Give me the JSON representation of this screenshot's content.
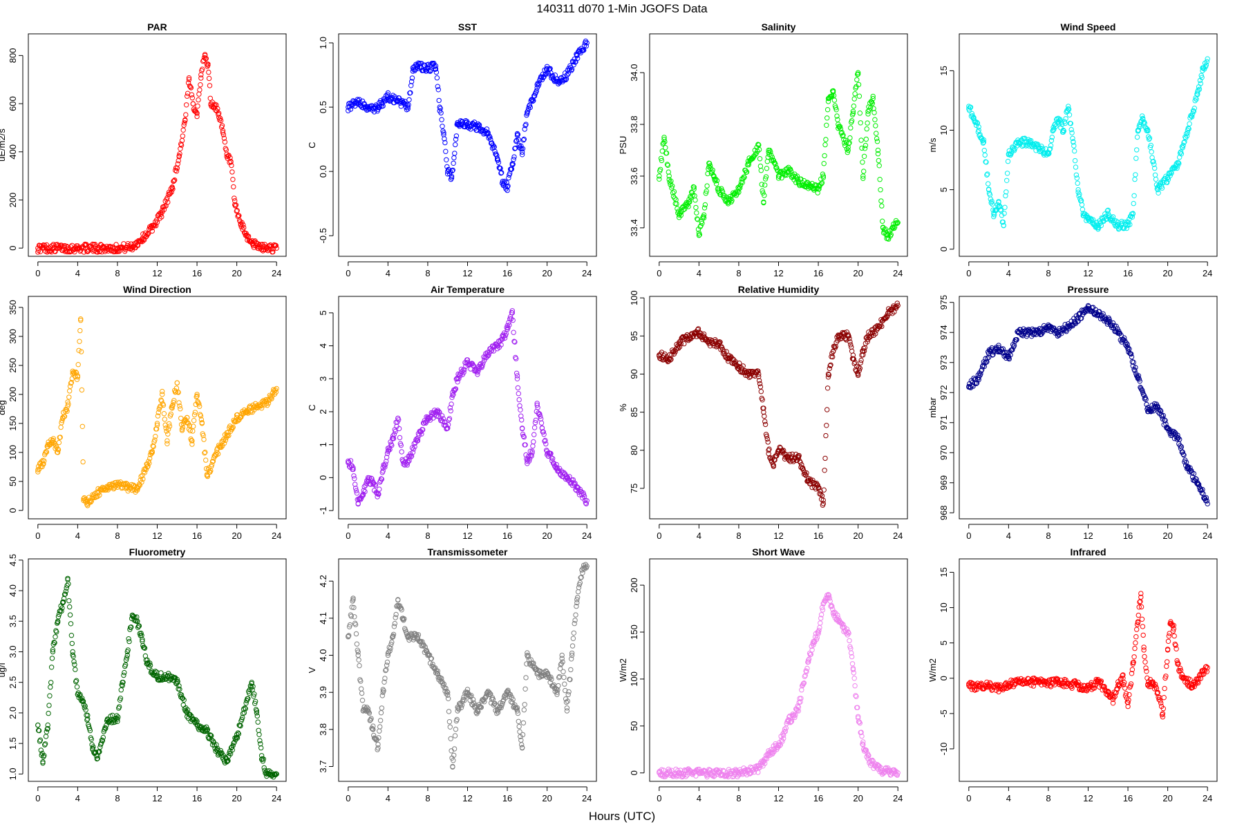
{
  "figure": {
    "title": "140311   d070   1-Min  JGOFS Data",
    "xlabel": "Hours (UTC)"
  },
  "chart_data": [
    {
      "type": "scatter",
      "title": "PAR",
      "ylabel": "uE/m2/s",
      "color": "#ff0000",
      "xlim": [
        -0.96,
        24.96
      ],
      "ylim": [
        -34,
        890
      ],
      "xticks": [
        0,
        4,
        8,
        12,
        16,
        20,
        24
      ],
      "yticks": [
        0,
        200,
        400,
        600,
        800
      ],
      "x": [
        0,
        2,
        4,
        6,
        8,
        9.5,
        10.5,
        11.5,
        12.5,
        13.5,
        14.2,
        14.8,
        15.2,
        15.6,
        16.0,
        16.4,
        16.8,
        17.1,
        17.4,
        17.8,
        18.2,
        18.6,
        19.0,
        19.4,
        19.8,
        20.4,
        21.0,
        21.6,
        22.2,
        23.0,
        24.0
      ],
      "y": [
        0,
        0,
        0,
        0,
        0,
        5,
        40,
        85,
        150,
        250,
        380,
        530,
        700,
        600,
        560,
        720,
        800,
        760,
        600,
        590,
        560,
        480,
        380,
        360,
        180,
        100,
        50,
        20,
        5,
        0,
        0
      ]
    },
    {
      "type": "scatter",
      "title": "SST",
      "ylabel": "C",
      "color": "#0000ff",
      "xlim": [
        -0.96,
        24.96
      ],
      "ylim": [
        -0.66,
        1.07
      ],
      "xticks": [
        0,
        4,
        8,
        12,
        16,
        20,
        24
      ],
      "yticks": [
        -0.5,
        0.0,
        0.5,
        1.0
      ],
      "x": [
        0,
        1,
        2,
        3,
        4,
        5,
        6,
        6.5,
        7,
        8,
        8.8,
        9.2,
        9.6,
        10.0,
        10.4,
        11,
        12,
        13,
        14,
        15,
        15.6,
        16.0,
        16.5,
        17.0,
        17.5,
        18,
        19,
        20,
        21,
        22,
        23,
        24
      ],
      "y": [
        0.5,
        0.55,
        0.48,
        0.5,
        0.58,
        0.55,
        0.5,
        0.78,
        0.82,
        0.8,
        0.82,
        0.5,
        0.3,
        0.0,
        -0.05,
        0.38,
        0.36,
        0.35,
        0.3,
        0.1,
        -0.1,
        -0.12,
        0.05,
        0.28,
        0.15,
        0.45,
        0.65,
        0.8,
        0.7,
        0.75,
        0.9,
        1.0
      ]
    },
    {
      "type": "scatter",
      "title": "Salinity",
      "ylabel": "PSU",
      "color": "#00ee00",
      "xlim": [
        -0.96,
        24.96
      ],
      "ylim": [
        33.29,
        34.15
      ],
      "xticks": [
        0,
        4,
        8,
        12,
        16,
        20,
        24
      ],
      "yticks": [
        33.4,
        33.6,
        33.8,
        34.0
      ],
      "x": [
        0,
        0.5,
        1,
        2,
        3,
        3.5,
        4,
        4.5,
        5,
        5.5,
        6,
        7,
        8,
        9,
        10,
        10.5,
        11,
        12,
        13,
        14,
        15,
        16,
        16.5,
        17,
        17.5,
        18,
        19,
        19.5,
        20,
        20.5,
        21,
        21.5,
        22,
        22.5,
        23,
        23.5,
        24
      ],
      "y": [
        33.6,
        33.75,
        33.6,
        33.45,
        33.5,
        33.55,
        33.38,
        33.45,
        33.65,
        33.6,
        33.55,
        33.5,
        33.55,
        33.65,
        33.72,
        33.5,
        33.7,
        33.6,
        33.62,
        33.58,
        33.56,
        33.55,
        33.6,
        33.9,
        33.93,
        33.8,
        33.7,
        33.85,
        34.0,
        33.6,
        33.85,
        33.9,
        33.7,
        33.4,
        33.36,
        33.4,
        33.42
      ]
    },
    {
      "type": "scatter",
      "title": "Wind Speed",
      "ylabel": "m/s",
      "color": "#00eeee",
      "xlim": [
        -0.96,
        24.96
      ],
      "ylim": [
        -0.6,
        18.1
      ],
      "xticks": [
        0,
        4,
        8,
        12,
        16,
        20,
        24
      ],
      "yticks": [
        0,
        5,
        10,
        15
      ],
      "x": [
        0,
        0.5,
        1,
        1.5,
        2,
        2.5,
        3,
        3.5,
        4,
        5,
        6,
        7,
        8,
        8.5,
        9,
        9.5,
        10,
        10.5,
        11,
        11.5,
        12,
        13,
        14,
        15,
        16,
        16.5,
        17,
        17.5,
        18,
        19,
        20,
        21,
        22,
        23,
        23.5,
        24
      ],
      "y": [
        12,
        11,
        10,
        9,
        5,
        3,
        4,
        2,
        8,
        9,
        9,
        8.5,
        8,
        10,
        11,
        10,
        12,
        9,
        5,
        3,
        2.5,
        2,
        3,
        2,
        2,
        3,
        10,
        11,
        10,
        5,
        6,
        7,
        10,
        13,
        15,
        16
      ]
    },
    {
      "type": "scatter",
      "title": "Wind Direction",
      "ylabel": "deg",
      "color": "#ffa500",
      "xlim": [
        -0.96,
        24.96
      ],
      "ylim": [
        -14.5,
        369
      ],
      "xticks": [
        0,
        4,
        8,
        12,
        16,
        20,
        24
      ],
      "yticks": [
        0,
        50,
        100,
        150,
        200,
        250,
        300,
        350
      ],
      "x": [
        0,
        0.5,
        1,
        1.5,
        2,
        2.5,
        3,
        3.5,
        4,
        4.3,
        4.6,
        5,
        6,
        7,
        8,
        9,
        10,
        11,
        11.5,
        12,
        12.5,
        13,
        13.5,
        14,
        14.5,
        15,
        15.5,
        16,
        16.5,
        17,
        18,
        19,
        20,
        21,
        22,
        23,
        24
      ],
      "y": [
        70,
        80,
        110,
        120,
        100,
        160,
        180,
        240,
        230,
        330,
        20,
        15,
        30,
        40,
        45,
        40,
        35,
        80,
        100,
        150,
        200,
        120,
        180,
        220,
        140,
        160,
        120,
        200,
        150,
        60,
        100,
        130,
        160,
        170,
        180,
        185,
        210
      ]
    },
    {
      "type": "scatter",
      "title": "Air Temperature",
      "ylabel": "C",
      "color": "#a020f0",
      "xlim": [
        -0.96,
        24.96
      ],
      "ylim": [
        -1.25,
        5.5
      ],
      "xticks": [
        0,
        4,
        8,
        12,
        16,
        20,
        24
      ],
      "yticks": [
        -1,
        0,
        1,
        2,
        3,
        4,
        5
      ],
      "x": [
        0,
        0.5,
        1,
        1.5,
        2,
        2.5,
        3,
        3.5,
        4,
        4.5,
        5,
        5.5,
        6,
        7,
        8,
        9,
        10,
        10.5,
        11,
        12,
        13,
        14,
        15,
        15.5,
        16,
        16.5,
        17,
        17.5,
        18,
        18.5,
        19,
        19.5,
        20,
        21,
        22,
        23,
        24
      ],
      "y": [
        0.5,
        0.3,
        -0.8,
        -0.5,
        0,
        -0.2,
        -0.5,
        0.2,
        0.8,
        1.2,
        1.8,
        0.5,
        0.5,
        1.2,
        1.8,
        2.0,
        1.5,
        2.5,
        3.0,
        3.5,
        3.2,
        3.8,
        4.0,
        4.2,
        4.5,
        5.0,
        3.0,
        1.5,
        0.5,
        0.8,
        2.2,
        1.5,
        0.8,
        0.3,
        0,
        -0.3,
        -0.7
      ]
    },
    {
      "type": "scatter",
      "title": "Relative Humidity",
      "ylabel": "%",
      "color": "#8b0000",
      "xlim": [
        -0.96,
        24.96
      ],
      "ylim": [
        71,
        100.2
      ],
      "xticks": [
        0,
        4,
        8,
        12,
        16,
        20,
        24
      ],
      "yticks": [
        75,
        80,
        85,
        90,
        95,
        100
      ],
      "x": [
        0,
        1,
        2,
        3,
        4,
        5,
        6,
        7,
        8,
        9,
        10,
        10.5,
        11,
        11.5,
        12,
        13,
        14,
        15,
        16,
        16.5,
        17,
        17.5,
        18,
        19,
        19.5,
        20,
        20.5,
        21,
        22,
        23,
        24
      ],
      "y": [
        92.5,
        92,
        94,
        95,
        95.5,
        94,
        94,
        92,
        91,
        90,
        90,
        85,
        80,
        78,
        80,
        79,
        79,
        76,
        75,
        73,
        90,
        93,
        95,
        95,
        92,
        90,
        93,
        95,
        96,
        98,
        99
      ]
    },
    {
      "type": "scatter",
      "title": "Pressure",
      "ylabel": "mbar",
      "color": "#00008b",
      "xlim": [
        -0.96,
        24.96
      ],
      "ylim": [
        967.8,
        975.2
      ],
      "xticks": [
        0,
        4,
        8,
        12,
        16,
        20,
        24
      ],
      "yticks": [
        968,
        969,
        970,
        971,
        972,
        973,
        974,
        975
      ],
      "x": [
        0,
        1,
        2,
        3,
        4,
        5,
        6,
        7,
        8,
        9,
        10,
        11,
        12,
        13,
        14,
        15,
        16,
        17,
        18,
        19,
        20,
        21,
        22,
        23,
        24
      ],
      "y": [
        972.2,
        972.5,
        973.3,
        973.5,
        973.2,
        974,
        974,
        974,
        974.2,
        974,
        974.2,
        974.5,
        974.8,
        974.6,
        974.4,
        974,
        973.5,
        972.5,
        971.5,
        971.5,
        970.8,
        970.5,
        969.5,
        969,
        968.3
      ]
    },
    {
      "type": "scatter",
      "title": "Fluorometry",
      "ylabel": "ug/l",
      "color": "#006400",
      "xlim": [
        -0.96,
        24.96
      ],
      "ylim": [
        0.88,
        4.52
      ],
      "xticks": [
        0,
        4,
        8,
        12,
        16,
        20,
        24
      ],
      "yticks": [
        1.0,
        1.5,
        2.0,
        2.5,
        3.0,
        3.5,
        4.0,
        4.5
      ],
      "x": [
        0,
        0.5,
        1,
        1.5,
        2,
        2.5,
        3,
        3.5,
        4,
        4.5,
        5,
        5.5,
        6,
        7,
        8,
        8.5,
        9,
        9.5,
        10,
        10.5,
        11,
        12,
        13,
        14,
        15,
        16,
        17,
        18,
        19,
        20,
        21,
        21.5,
        22,
        22.5,
        23,
        24
      ],
      "y": [
        1.8,
        1.2,
        1.8,
        3.0,
        3.5,
        3.8,
        4.2,
        3.0,
        2.3,
        2.2,
        1.9,
        1.4,
        1.3,
        1.9,
        1.9,
        2.5,
        3.0,
        3.6,
        3.5,
        3.2,
        2.8,
        2.6,
        2.6,
        2.5,
        2.0,
        1.8,
        1.7,
        1.4,
        1.2,
        1.6,
        2.2,
        2.5,
        2.0,
        1.3,
        1.0,
        1.0
      ]
    },
    {
      "type": "scatter",
      "title": "Transmissometer",
      "ylabel": "V",
      "color": "#808080",
      "xlim": [
        -0.96,
        24.96
      ],
      "ylim": [
        3.66,
        4.26
      ],
      "xticks": [
        0,
        4,
        8,
        12,
        16,
        20,
        24
      ],
      "yticks": [
        3.7,
        3.8,
        3.9,
        4.0,
        4.1,
        4.2
      ],
      "x": [
        0,
        0.5,
        1,
        1.5,
        2,
        2.5,
        3,
        3.5,
        4,
        4.5,
        5,
        5.5,
        6,
        7,
        8,
        9,
        10,
        10.5,
        11,
        12,
        13,
        14,
        15,
        16,
        17,
        17.5,
        18,
        19,
        20,
        21,
        21.5,
        22,
        22.5,
        23,
        23.5,
        24
      ],
      "y": [
        4.05,
        4.15,
        4.0,
        3.85,
        3.85,
        3.8,
        3.75,
        3.9,
        4.0,
        4.05,
        4.15,
        4.1,
        4.05,
        4.05,
        4.0,
        3.95,
        3.9,
        3.7,
        3.85,
        3.9,
        3.85,
        3.9,
        3.85,
        3.9,
        3.85,
        3.75,
        4.0,
        3.95,
        3.95,
        3.9,
        4.0,
        3.85,
        4.0,
        4.15,
        4.23,
        4.24
      ]
    },
    {
      "type": "scatter",
      "title": "Short Wave",
      "ylabel": "W/m2",
      "color": "#ee82ee",
      "xlim": [
        -0.96,
        24.96
      ],
      "ylim": [
        -9,
        228
      ],
      "xticks": [
        0,
        4,
        8,
        12,
        16,
        20,
        24
      ],
      "yticks": [
        0,
        50,
        100,
        150,
        200
      ],
      "x": [
        0,
        2,
        4,
        6,
        8,
        9,
        10,
        10.5,
        11,
        11.5,
        12,
        12.5,
        13,
        13.5,
        14,
        14.5,
        15,
        15.5,
        16,
        16.5,
        17,
        17.5,
        18,
        18.5,
        19,
        19.5,
        20,
        20.5,
        21,
        22,
        23,
        24
      ],
      "y": [
        0,
        0,
        0,
        0,
        0,
        2,
        5,
        12,
        20,
        25,
        30,
        40,
        55,
        60,
        70,
        95,
        120,
        140,
        150,
        180,
        190,
        170,
        165,
        155,
        150,
        110,
        60,
        30,
        15,
        4,
        1,
        0
      ]
    },
    {
      "type": "scatter",
      "title": "Infrared",
      "ylabel": "W/m2",
      "color": "#ff0000",
      "xlim": [
        -0.96,
        24.96
      ],
      "ylim": [
        -14.6,
        16.9
      ],
      "xticks": [
        0,
        4,
        8,
        12,
        16,
        20,
        24
      ],
      "yticks": [
        -10,
        -5,
        0,
        5,
        10,
        15
      ],
      "x": [
        0,
        1,
        2,
        3,
        4,
        5,
        6,
        7,
        8,
        9,
        10,
        11,
        12,
        13,
        14,
        14.5,
        15,
        15.5,
        16,
        16.5,
        17,
        17.3,
        17.6,
        18,
        18.5,
        19,
        19.5,
        20,
        20.3,
        20.6,
        21,
        21.5,
        22,
        22.5,
        23,
        23.5,
        24
      ],
      "y": [
        -1,
        -1.2,
        -1,
        -1.5,
        -0.8,
        -0.5,
        -0.6,
        -0.5,
        -0.8,
        -0.5,
        -0.8,
        -1,
        -1.5,
        -0.5,
        -2,
        -3,
        -1,
        0,
        -4,
        2,
        8,
        12,
        4,
        -1,
        -0.5,
        -2,
        -5,
        4,
        8,
        7,
        2,
        0,
        -0.5,
        -1,
        -0.5,
        1,
        1.5
      ]
    }
  ]
}
